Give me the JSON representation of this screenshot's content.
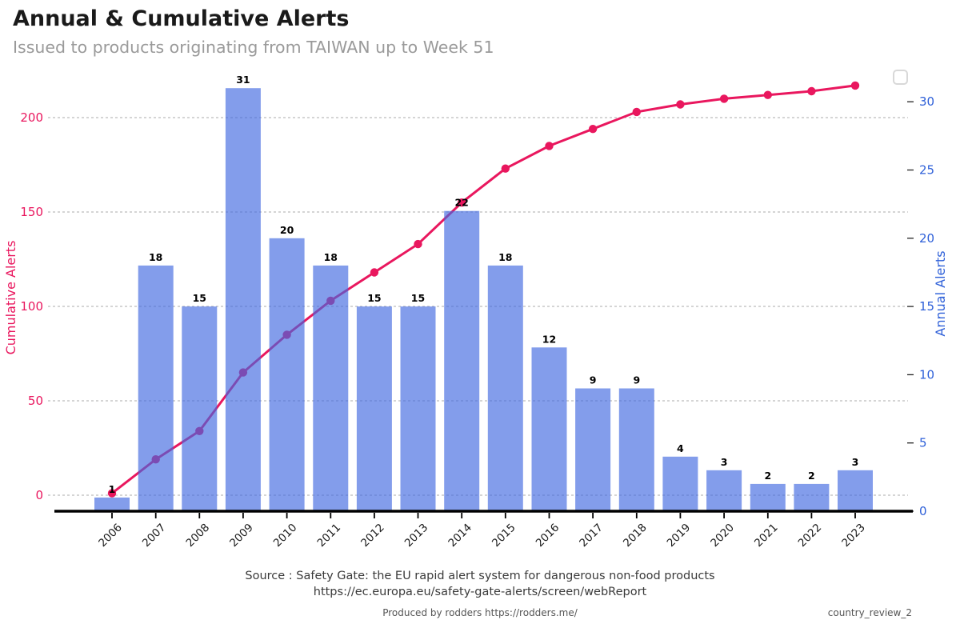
{
  "header": {
    "title": "Annual & Cumulative Alerts",
    "subtitle": "Issued to products originating from TAIWAN up to Week 51"
  },
  "chart_data": {
    "type": "bar+line combo",
    "categories": [
      "2006",
      "2007",
      "2008",
      "2009",
      "2010",
      "2011",
      "2012",
      "2013",
      "2014",
      "2015",
      "2016",
      "2017",
      "2018",
      "2019",
      "2020",
      "2021",
      "2022",
      "2023"
    ],
    "series": [
      {
        "name": "Annual Alerts",
        "type": "bar",
        "axis": "right",
        "color": "#4169E1",
        "fill_opacity": 0.65,
        "values": [
          1,
          18,
          15,
          31,
          20,
          18,
          15,
          15,
          22,
          18,
          12,
          9,
          9,
          4,
          3,
          2,
          2,
          3
        ]
      },
      {
        "name": "Cumulative Alerts",
        "type": "line",
        "axis": "left",
        "color": "#E9175E",
        "marker": "circle",
        "values": [
          1,
          19,
          34,
          65,
          85,
          103,
          118,
          133,
          155,
          173,
          185,
          194,
          203,
          207,
          210,
          212,
          214,
          217
        ]
      }
    ],
    "bar_labels_visible": true,
    "left_axis": {
      "title": "Cumulative Alerts",
      "color": "#E9175E",
      "ticks": [
        0,
        50,
        100,
        150,
        200
      ],
      "max": 233
    },
    "right_axis": {
      "title": "Annual Alerts",
      "color": "#2D5FD8",
      "ticks": [
        0,
        5,
        10,
        15,
        20,
        25,
        30
      ],
      "max": 32.3
    },
    "grid": {
      "style": "dashed",
      "follows": "left-axis-ticks",
      "color": "#ababab"
    },
    "legend": {
      "visible": true,
      "style": "empty-box",
      "position": "top-right"
    }
  },
  "footer": {
    "source_line1": "Source : Safety Gate: the EU rapid alert system for dangerous non-food products",
    "source_line2": "https://ec.europa.eu/safety-gate-alerts/screen/webReport",
    "produced_by": "Produced by rodders https://rodders.me/",
    "doc_id": "country_review_2"
  }
}
